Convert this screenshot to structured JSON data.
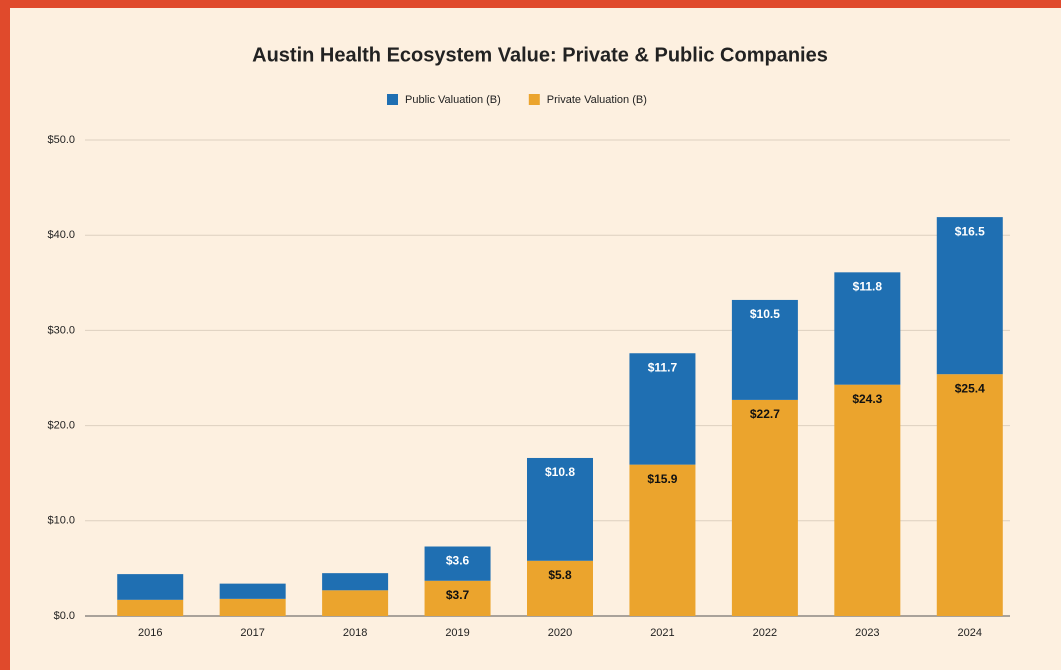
{
  "chart_data": {
    "type": "stacked_bar",
    "title": "Austin Health Ecosystem Value: Private & Public Companies",
    "categories": [
      "2016",
      "2017",
      "2018",
      "2019",
      "2020",
      "2021",
      "2022",
      "2023",
      "2024"
    ],
    "series": [
      {
        "name": "Public Valuation (B)",
        "color": "#1f6fb2",
        "values": [
          2.7,
          1.6,
          1.8,
          3.6,
          10.8,
          11.7,
          10.5,
          11.8,
          16.5
        ],
        "value_labels": [
          null,
          null,
          null,
          "$3.6",
          "$10.8",
          "$11.7",
          "$10.5",
          "$11.8",
          "$16.5"
        ]
      },
      {
        "name": "Private Valuation (B)",
        "color": "#eba42d",
        "values": [
          1.7,
          1.8,
          2.7,
          3.7,
          5.8,
          15.9,
          22.7,
          24.3,
          25.4
        ],
        "value_labels": [
          null,
          null,
          null,
          "$3.7",
          "$5.8",
          "$15.9",
          "$22.7",
          "$24.3",
          "$25.4"
        ]
      }
    ],
    "ylim": [
      0,
      50
    ],
    "yticks": [
      {
        "value": 0,
        "label": "$0.0"
      },
      {
        "value": 10,
        "label": "$10.0"
      },
      {
        "value": 20,
        "label": "$20.0"
      },
      {
        "value": 30,
        "label": "$30.0"
      },
      {
        "value": 40,
        "label": "$40.0"
      },
      {
        "value": 50,
        "label": "$50.0"
      }
    ],
    "grid": true,
    "legend": "top"
  }
}
